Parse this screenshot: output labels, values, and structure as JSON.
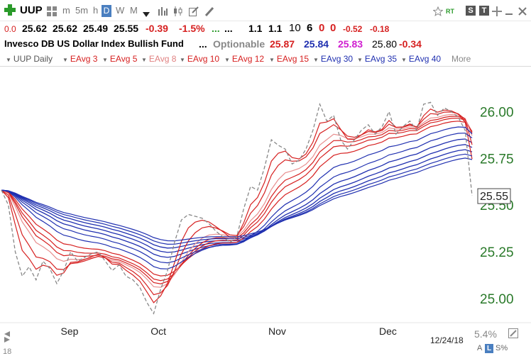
{
  "toolbar": {
    "symbol": "UUP",
    "intervals": [
      "m",
      "5m",
      "h",
      "D",
      "W",
      "M"
    ],
    "active_interval": "D",
    "rt_label": "RT",
    "s_badge": "S",
    "t_badge": "T"
  },
  "quote": {
    "flag": "0.0",
    "open": "25.62",
    "high": "25.62",
    "low": "25.49",
    "close": "25.55",
    "change": "-0.39",
    "change_pct": "-1.5%",
    "dots1": "...",
    "dots2": "...",
    "v1": "1.1",
    "v2": "1.1",
    "n1": "10",
    "n2": "6",
    "n3": "0",
    "n4": "0",
    "v3": "-0.52",
    "v4": "-0.18"
  },
  "name_row": {
    "name": "Invesco DB US Dollar Index Bullish Fund",
    "dots": "...",
    "optionable": "Optionable",
    "a": "25.87",
    "b": "25.84",
    "c": "25.83",
    "d": "25.80",
    "e": "-0.34"
  },
  "studies": {
    "items": [
      "UUP Daily",
      "EAvg 3",
      "EAvg 5",
      "EAvg 8",
      "EAvg 10",
      "EAvg 12",
      "EAvg 15",
      "EAvg 30",
      "EAvg 35",
      "EAvg 40"
    ],
    "colors": [
      "#555555",
      "#d02020",
      "#d02020",
      "#e08080",
      "#d02020",
      "#d02020",
      "#d02020",
      "#2030b0",
      "#2030b0",
      "#2030b0"
    ],
    "more_label": "More"
  },
  "chart_data": {
    "type": "line",
    "x_labels": [
      "Sep",
      "Oct",
      "Nov",
      "Dec"
    ],
    "y_ticks": [
      "26.00",
      "25.75",
      "25.50",
      "25.25",
      "25.00"
    ],
    "y_tick_values": [
      26.0,
      25.75,
      25.5,
      25.25,
      25.0
    ],
    "ylim": [
      24.89,
      26.18
    ],
    "last_price_label": "25.55",
    "last_price": 25.55,
    "date_label": "12/24/18",
    "close": [
      25.58,
      25.5,
      25.25,
      25.12,
      25.17,
      25.1,
      25.2,
      25.16,
      25.08,
      25.15,
      25.25,
      25.2,
      25.22,
      25.24,
      25.25,
      25.2,
      25.15,
      25.18,
      25.12,
      25.1,
      25.06,
      24.98,
      24.92,
      25.05,
      25.15,
      25.3,
      25.42,
      25.45,
      25.44,
      25.43,
      25.4,
      25.36,
      25.33,
      25.3,
      25.33,
      25.48,
      25.6,
      25.58,
      25.7,
      25.85,
      25.82,
      25.8,
      25.72,
      25.74,
      25.8,
      25.9,
      26.04,
      25.95,
      25.98,
      25.85,
      25.8,
      25.85,
      25.9,
      25.93,
      25.88,
      25.92,
      26.0,
      25.88,
      25.92,
      25.95,
      25.9,
      26.04,
      26.05,
      25.98,
      26.02,
      26.0,
      25.97,
      25.9,
      25.55
    ],
    "series": [
      {
        "name": "EAvg 3",
        "period": 3,
        "color": "#d62020"
      },
      {
        "name": "EAvg 5",
        "period": 5,
        "color": "#d62020"
      },
      {
        "name": "EAvg 8",
        "period": 8,
        "color": "#e89090"
      },
      {
        "name": "EAvg 10",
        "period": 10,
        "color": "#d62020"
      },
      {
        "name": "EAvg 12",
        "period": 12,
        "color": "#d62020"
      },
      {
        "name": "EAvg 15",
        "period": 15,
        "color": "#d62020"
      },
      {
        "name": "EAvg 30",
        "period": 30,
        "color": "#2030b0"
      },
      {
        "name": "EAvg 35",
        "period": 35,
        "color": "#2030b0"
      },
      {
        "name": "EAvg 40",
        "period": 40,
        "color": "#2030b0"
      }
    ]
  },
  "footer": {
    "pct": "5.4%",
    "a_badge": "A",
    "l_badge": "L",
    "s_pct": "S%"
  }
}
